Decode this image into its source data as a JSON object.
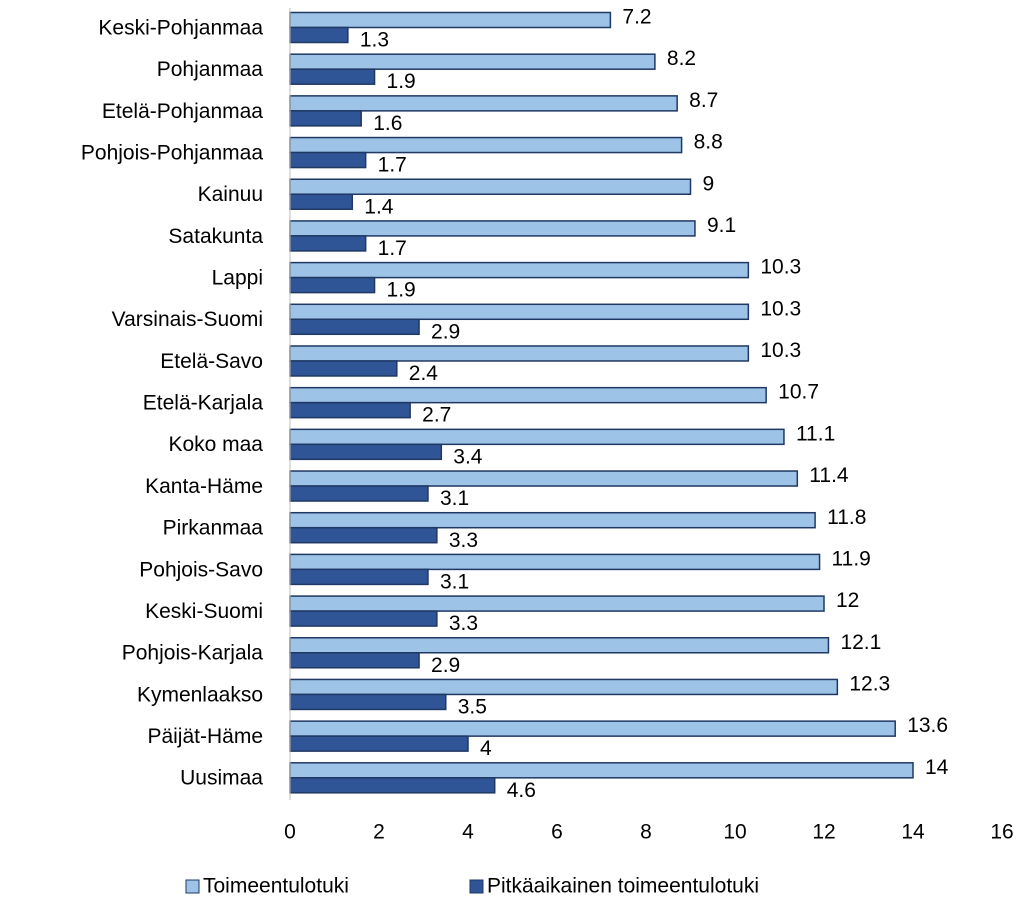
{
  "chart_data": {
    "type": "barh",
    "categories": [
      "Keski-Pohjanmaa",
      "Pohjanmaa",
      "Etelä-Pohjanmaa",
      "Pohjois-Pohjanmaa",
      "Kainuu",
      "Satakunta",
      "Lappi",
      "Varsinais-Suomi",
      "Etelä-Savo",
      "Etelä-Karjala",
      "Koko maa",
      "Kanta-Häme",
      "Pirkanmaa",
      "Pohjois-Savo",
      "Keski-Suomi",
      "Pohjois-Karjala",
      "Kymenlaakso",
      "Päijät-Häme",
      "Uusimaa"
    ],
    "series": [
      {
        "name": "Toimeentulotuki",
        "color": "#9dc3e6",
        "values": [
          7.2,
          8.2,
          8.7,
          8.8,
          9,
          9.1,
          10.3,
          10.3,
          10.3,
          10.7,
          11.1,
          11.4,
          11.8,
          11.9,
          12,
          12.1,
          12.3,
          13.6,
          14
        ]
      },
      {
        "name": "Pitkäaikainen toimeentulotuki",
        "color": "#2f5597",
        "values": [
          1.3,
          1.9,
          1.6,
          1.7,
          1.4,
          1.7,
          1.9,
          2.9,
          2.4,
          2.7,
          3.4,
          3.1,
          3.3,
          3.1,
          3.3,
          2.9,
          3.5,
          4,
          4.6
        ]
      }
    ],
    "xlim": [
      0,
      16
    ],
    "xticks": [
      0,
      2,
      4,
      6,
      8,
      10,
      12,
      14,
      16
    ],
    "grid": false,
    "legend": "bottom"
  }
}
